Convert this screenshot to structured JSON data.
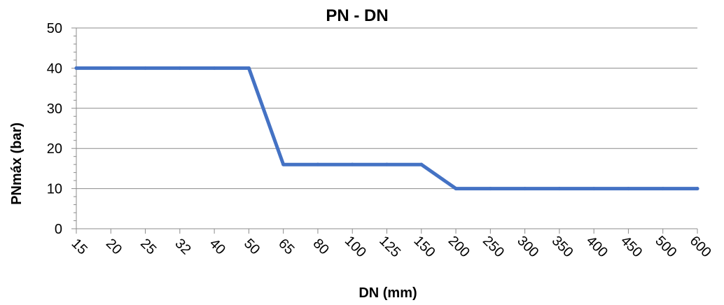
{
  "chart_data": {
    "type": "line",
    "title": "PN - DN",
    "xlabel": "DN (mm)",
    "ylabel": "PNmáx (bar)",
    "categories": [
      "15",
      "20",
      "25",
      "32",
      "40",
      "50",
      "65",
      "80",
      "100",
      "125",
      "150",
      "200",
      "250",
      "300",
      "350",
      "400",
      "450",
      "500",
      "600"
    ],
    "series": [
      {
        "values": [
          40,
          40,
          40,
          40,
          40,
          40,
          16,
          16,
          16,
          16,
          16,
          10,
          10,
          10,
          10,
          10,
          10,
          10,
          10
        ],
        "color": "#4472C4"
      }
    ],
    "ylim": [
      0,
      50
    ],
    "yticks": [
      0,
      10,
      20,
      30,
      40,
      50
    ],
    "grid": "horizontal",
    "legend": "none"
  }
}
